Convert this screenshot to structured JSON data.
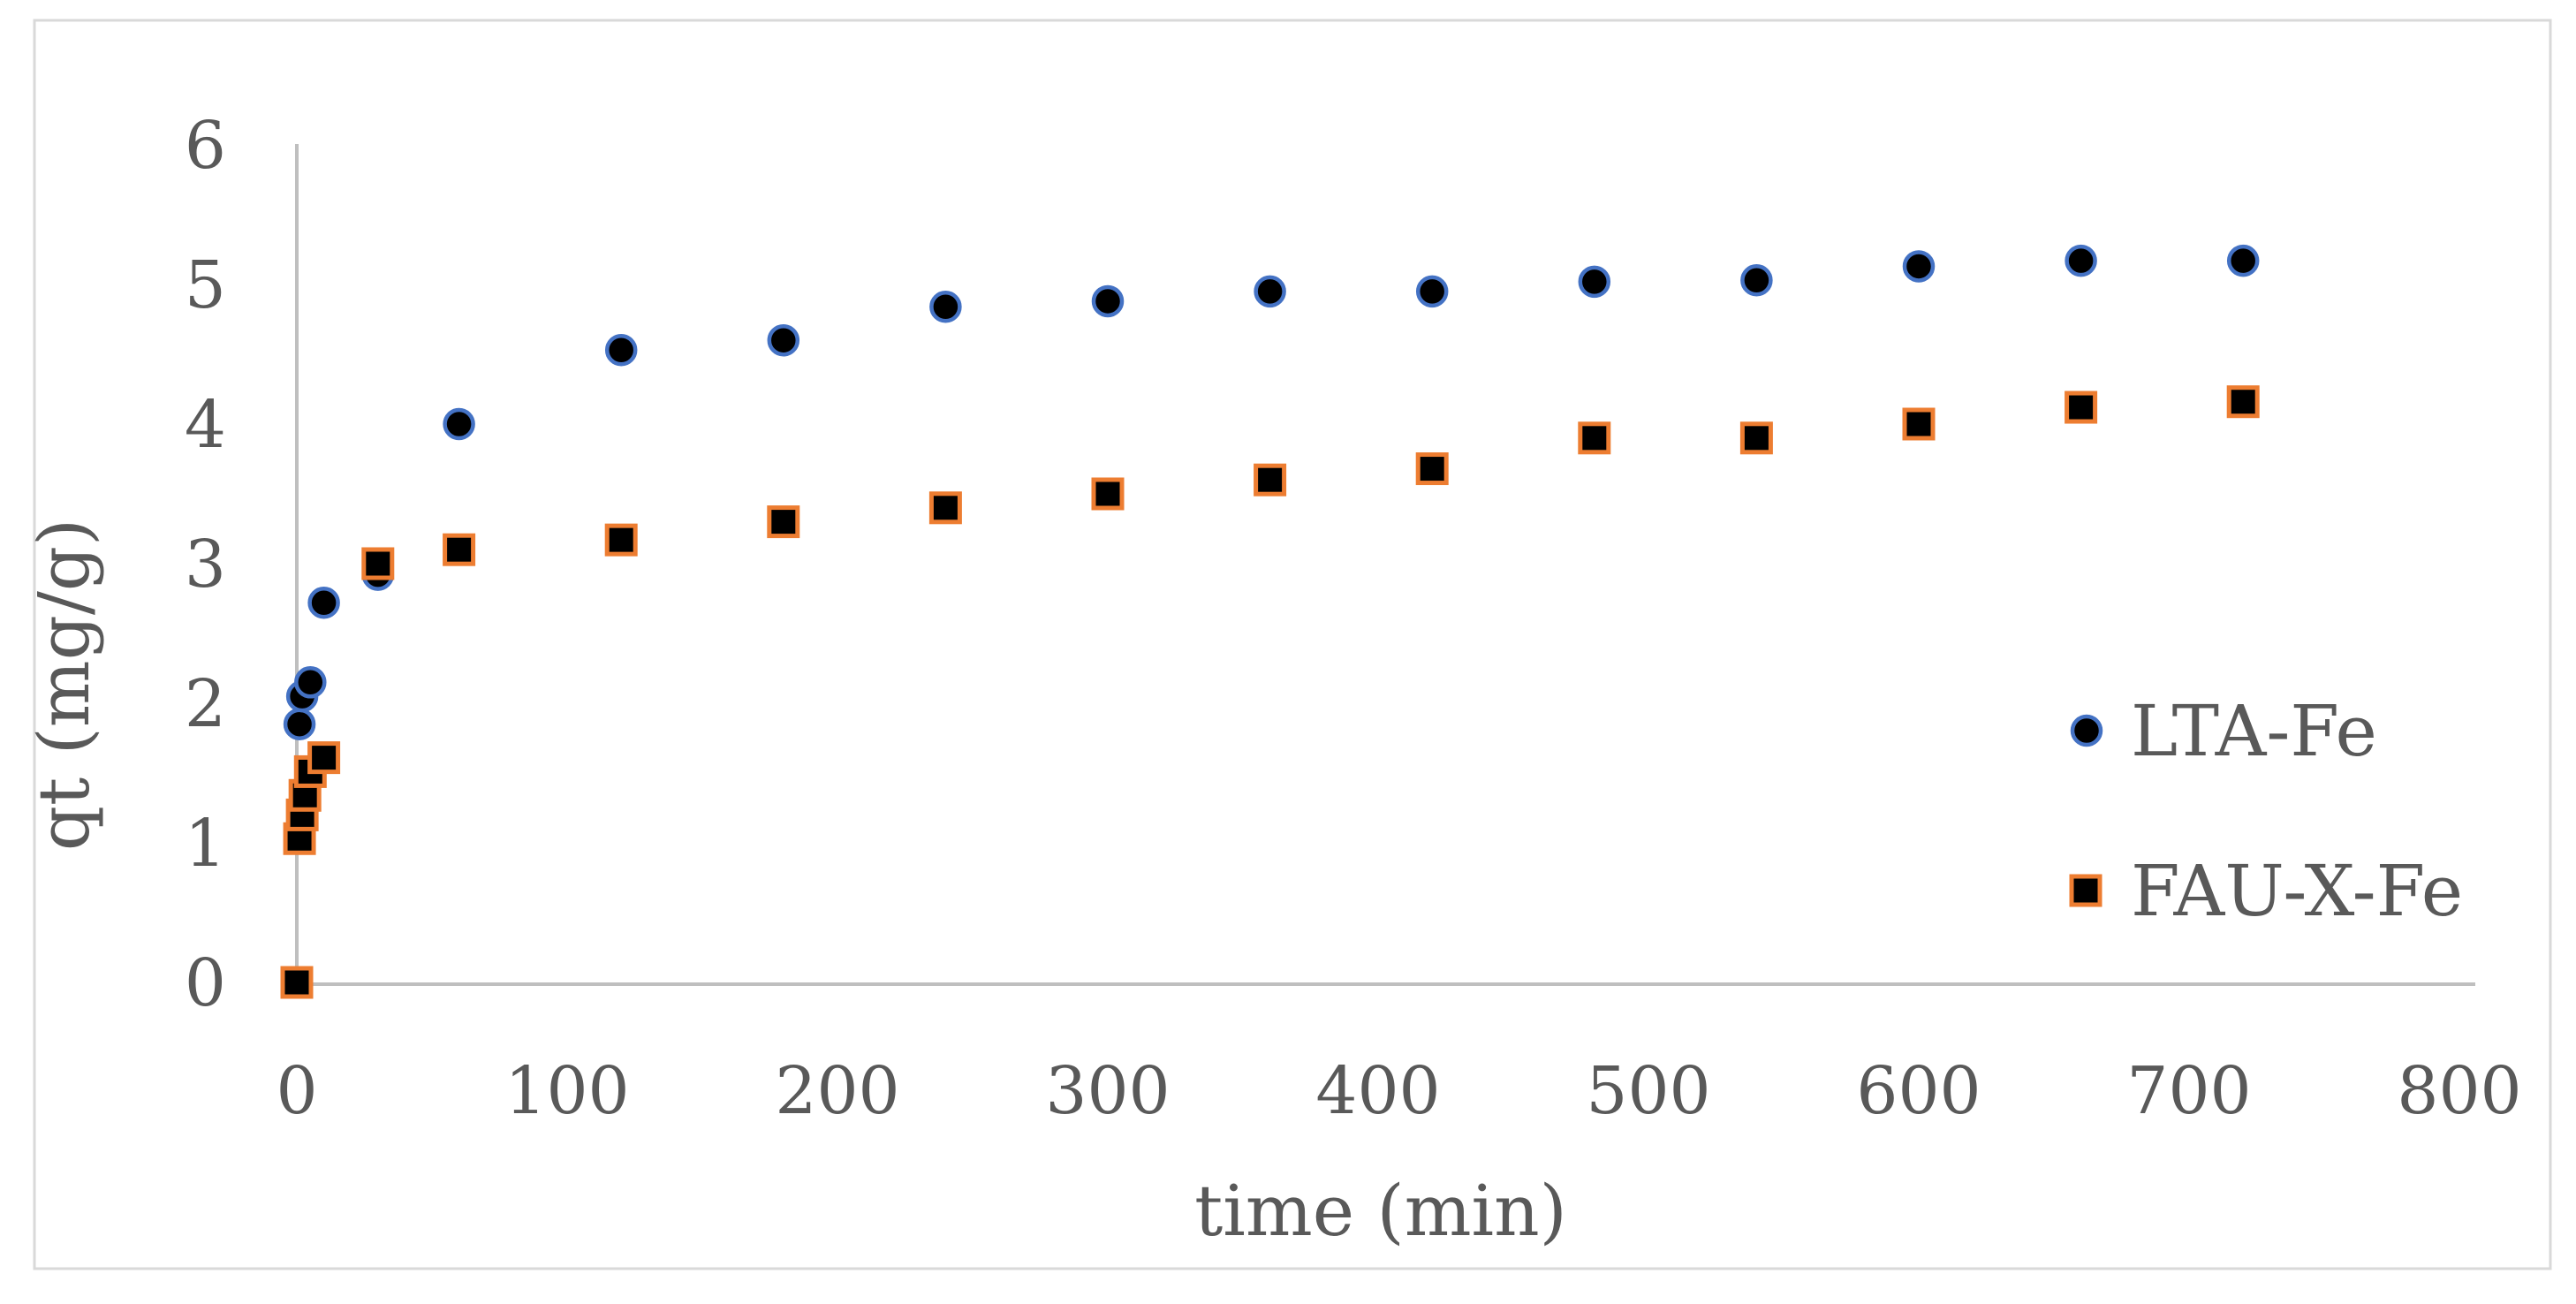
{
  "chart_data": {
    "type": "scatter",
    "title": "",
    "xlabel": "time (min)",
    "ylabel": "qt (mg/g)",
    "xlim": [
      0,
      800
    ],
    "ylim": [
      0,
      6
    ],
    "xticks": [
      0,
      100,
      200,
      300,
      400,
      500,
      600,
      700,
      800
    ],
    "yticks": [
      0,
      1,
      2,
      3,
      4,
      5,
      6
    ],
    "grid": false,
    "legend_position": "right",
    "series": [
      {
        "name": "LTA-Fe",
        "marker": "circle",
        "marker_fill": "#000000",
        "marker_stroke": "#4472C4",
        "points": [
          [
            1,
            1.85
          ],
          [
            2,
            2.05
          ],
          [
            5,
            2.15
          ],
          [
            10,
            2.72
          ],
          [
            30,
            2.92
          ],
          [
            60,
            4.0
          ],
          [
            120,
            4.53
          ],
          [
            180,
            4.6
          ],
          [
            240,
            4.84
          ],
          [
            300,
            4.88
          ],
          [
            360,
            4.95
          ],
          [
            420,
            4.95
          ],
          [
            480,
            5.02
          ],
          [
            540,
            5.03
          ],
          [
            600,
            5.13
          ],
          [
            660,
            5.17
          ],
          [
            720,
            5.17
          ]
        ]
      },
      {
        "name": "FAU-X-Fe",
        "marker": "square",
        "marker_fill": "#000000",
        "marker_stroke": "#ED7D31",
        "points": [
          [
            0,
            0
          ],
          [
            1,
            1.03
          ],
          [
            2,
            1.2
          ],
          [
            3,
            1.34
          ],
          [
            5,
            1.51
          ],
          [
            10,
            1.61
          ],
          [
            30,
            3.0
          ],
          [
            60,
            3.1
          ],
          [
            120,
            3.17
          ],
          [
            180,
            3.3
          ],
          [
            240,
            3.4
          ],
          [
            300,
            3.5
          ],
          [
            360,
            3.6
          ],
          [
            420,
            3.68
          ],
          [
            480,
            3.9
          ],
          [
            540,
            3.9
          ],
          [
            600,
            4.0
          ],
          [
            660,
            4.12
          ],
          [
            720,
            4.16
          ]
        ]
      }
    ]
  },
  "colors": {
    "axis_line": "#BFBFBF",
    "chart_border": "#D9D9D9",
    "text": "#595959",
    "series_lta_stroke": "#4472C4",
    "series_fau_stroke": "#ED7D31",
    "marker_fill": "#000000",
    "background": "#FFFFFF"
  }
}
